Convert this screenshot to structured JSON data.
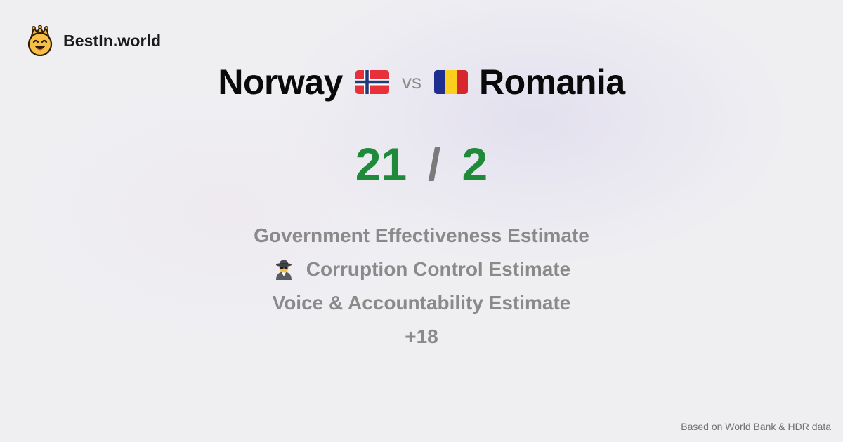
{
  "brand": {
    "name": "BestIn.world",
    "logo_icon": "crown-smiley-icon"
  },
  "comparison": {
    "left": {
      "name": "Norway",
      "flag_icon": "norway-flag-icon"
    },
    "vs_label": "vs",
    "right": {
      "name": "Romania",
      "flag_icon": "romania-flag-icon"
    }
  },
  "score": {
    "left": "21",
    "separator": "/",
    "right": "2",
    "color": "#1e8a3a"
  },
  "metrics": [
    {
      "label": "Government Effectiveness Estimate"
    },
    {
      "label": "Corruption Control Estimate",
      "icon": "detective-icon"
    },
    {
      "label": "Voice & Accountability Estimate"
    }
  ],
  "more_count": "+18",
  "footer": {
    "source": "Based on World Bank & HDR data"
  }
}
